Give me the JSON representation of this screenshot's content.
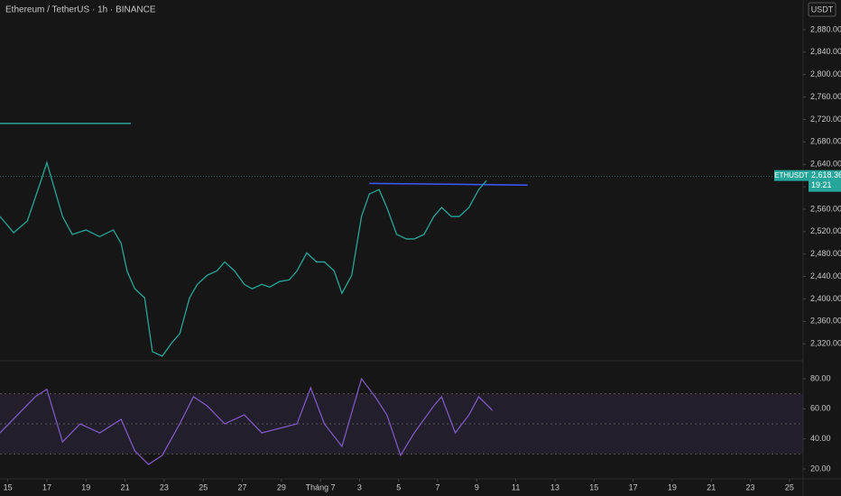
{
  "header": {
    "title": "Ethereum / TetherUS · 1h · BINANCE",
    "currency": "USDT"
  },
  "chart_data": [
    {
      "type": "line",
      "symbol_tag": "ETHUSDT",
      "last_price": {
        "value": 2618.36,
        "label": "2,618.36"
      },
      "countdown": "19:21",
      "series": [
        {
          "color": "#26a69a",
          "x": [
            -0.4,
            0.3,
            1.0,
            1.7,
            2.0,
            2.4,
            2.8,
            3.3,
            4.0,
            4.7,
            5.4,
            5.8,
            6.1,
            6.5,
            7.0,
            7.2,
            7.4,
            7.9,
            8.4,
            8.8,
            9.3,
            9.7,
            10.2,
            10.7,
            11.1,
            11.6,
            12.1,
            12.5,
            13.0,
            13.4,
            13.9,
            14.4,
            14.8,
            15.3,
            15.8,
            16.2,
            16.7,
            17.1,
            17.6,
            18.1,
            18.5,
            19.0,
            19.4,
            19.9,
            20.4,
            20.8,
            21.3,
            21.8,
            22.2,
            22.7,
            23.1,
            23.6,
            24.1,
            24.5
          ],
          "values": [
            2547,
            2518,
            2539,
            2611,
            2643,
            2595,
            2547,
            2515,
            2523,
            2511,
            2523,
            2499,
            2450,
            2418,
            2402,
            2354,
            2306,
            2298,
            2322,
            2338,
            2402,
            2426,
            2442,
            2450,
            2466,
            2450,
            2426,
            2418,
            2426,
            2421,
            2431,
            2434,
            2450,
            2482,
            2466,
            2466,
            2450,
            2410,
            2442,
            2547,
            2587,
            2595,
            2563,
            2515,
            2507,
            2507,
            2515,
            2547,
            2563,
            2547,
            2547,
            2563,
            2595,
            2611
          ]
        }
      ],
      "levels": [
        {
          "color": "#26a69a",
          "x": [
            -0.4,
            6.3
          ],
          "y": [
            2713,
            2713
          ]
        },
        {
          "color": "#3d5afe",
          "x": [
            18.5,
            26.6
          ],
          "y": [
            2606,
            2603
          ]
        }
      ],
      "xlim": [
        -0.4,
        40.7
      ],
      "ylim": [
        2293,
        2933
      ],
      "yticks": [
        {
          "value": 2320,
          "label": "2,320.00"
        },
        {
          "value": 2360,
          "label": "2,360.00"
        },
        {
          "value": 2400,
          "label": "2,400.00"
        },
        {
          "value": 2440,
          "label": "2,440.00"
        },
        {
          "value": 2480,
          "label": "2,480.00"
        },
        {
          "value": 2520,
          "label": "2,520.00"
        },
        {
          "value": 2560,
          "label": "2,560.00"
        },
        {
          "value": 2600,
          "label": "2,600.00"
        },
        {
          "value": 2640,
          "label": "2,640.00"
        },
        {
          "value": 2680,
          "label": "2,680.00"
        },
        {
          "value": 2720,
          "label": "2,720.00"
        },
        {
          "value": 2760,
          "label": "2,760.00"
        },
        {
          "value": 2800,
          "label": "2,800.00"
        },
        {
          "value": 2840,
          "label": "2,840.00"
        },
        {
          "value": 2880,
          "label": "2,880.00"
        }
      ]
    },
    {
      "type": "line",
      "series": [
        {
          "color": "#7e57c2",
          "x": [
            -0.4,
            0.5,
            1.4,
            2.0,
            2.8,
            3.7,
            4.7,
            5.8,
            6.5,
            7.2,
            7.9,
            8.8,
            9.5,
            10.2,
            11.1,
            12.1,
            13.0,
            13.9,
            14.8,
            15.5,
            16.2,
            17.1,
            18.1,
            18.8,
            19.4,
            20.1,
            20.8,
            21.8,
            22.2,
            22.9,
            23.6,
            24.1,
            24.8
          ],
          "values": [
            44,
            56,
            68,
            73,
            38,
            50,
            44,
            53,
            32,
            23,
            29,
            50,
            68,
            62,
            50,
            56,
            44,
            47,
            50,
            74,
            50,
            35,
            80,
            68,
            56,
            29,
            44,
            62,
            68,
            44,
            56,
            68,
            59
          ]
        }
      ],
      "bands": [
        30,
        70
      ],
      "middle": 50,
      "xlim": [
        -0.4,
        40.7
      ],
      "ylim": [
        14,
        89
      ],
      "yticks": [
        {
          "value": 20,
          "label": "20.00"
        },
        {
          "value": 40,
          "label": "40.00"
        },
        {
          "value": 60,
          "label": "60.00"
        },
        {
          "value": 80,
          "label": "80.00"
        }
      ],
      "xticks": [
        {
          "value": 0,
          "label": "15"
        },
        {
          "value": 2,
          "label": "17"
        },
        {
          "value": 4,
          "label": "19"
        },
        {
          "value": 6,
          "label": "21"
        },
        {
          "value": 8,
          "label": "23"
        },
        {
          "value": 10,
          "label": "25"
        },
        {
          "value": 12,
          "label": "27"
        },
        {
          "value": 14,
          "label": "29"
        },
        {
          "value": 16,
          "label": "Tháng 7"
        },
        {
          "value": 18,
          "label": "3"
        },
        {
          "value": 20,
          "label": "5"
        },
        {
          "value": 22,
          "label": "7"
        },
        {
          "value": 24,
          "label": "9"
        },
        {
          "value": 26,
          "label": "11"
        },
        {
          "value": 28,
          "label": "13"
        },
        {
          "value": 30,
          "label": "15"
        },
        {
          "value": 32,
          "label": "17"
        },
        {
          "value": 34,
          "label": "19"
        },
        {
          "value": 36,
          "label": "21"
        },
        {
          "value": 38,
          "label": "23"
        },
        {
          "value": 40,
          "label": "25"
        }
      ]
    }
  ]
}
